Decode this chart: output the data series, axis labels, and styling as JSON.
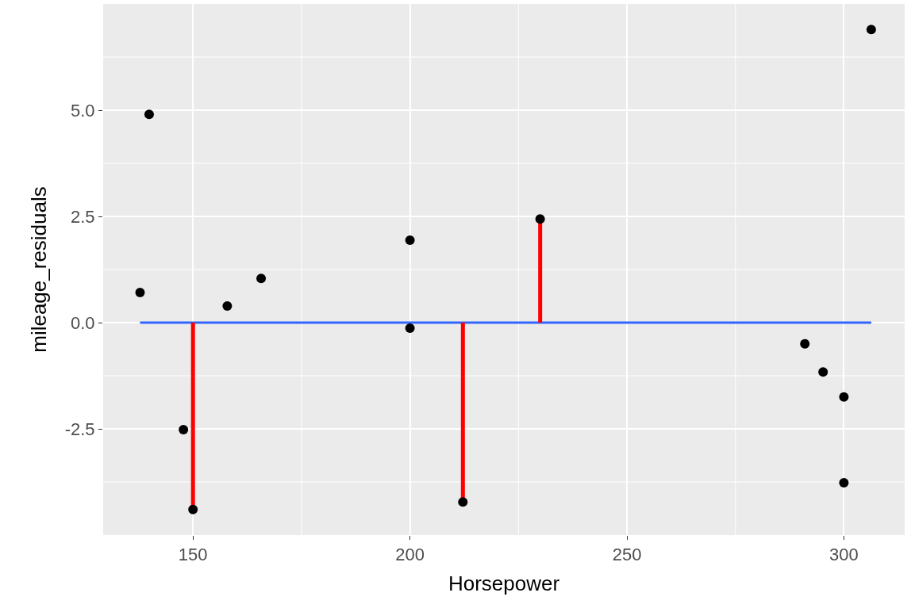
{
  "chart_data": {
    "type": "scatter",
    "xlabel": "Horsepower",
    "ylabel": "mileage_residuals",
    "xlim": [
      129.3,
      314
    ],
    "ylim": [
      -5.0,
      7.5
    ],
    "xticks": [
      150,
      200,
      250,
      300
    ],
    "yticks": [
      {
        "value": -2.5,
        "label": "-2.5"
      },
      {
        "value": 0,
        "label": "0.0"
      },
      {
        "value": 2.5,
        "label": "2.5"
      },
      {
        "value": 5,
        "label": "5.0"
      }
    ],
    "grid": true,
    "series": [
      {
        "type": "line",
        "marker": "none",
        "color": "#3366ff",
        "x": [
          137.8,
          306.3
        ],
        "values": [
          0,
          0
        ]
      },
      {
        "type": "line",
        "marker": "none",
        "color": "#ff0000",
        "x": [
          150,
          150
        ],
        "values": [
          0,
          -4.4
        ]
      },
      {
        "type": "line",
        "marker": "none",
        "color": "#ff0000",
        "x": [
          212.2,
          212.2
        ],
        "values": [
          0,
          -4.22
        ]
      },
      {
        "type": "line",
        "marker": "none",
        "color": "#ff0000",
        "x": [
          230,
          230
        ],
        "values": [
          0,
          2.44
        ]
      },
      {
        "marker": "circle",
        "color": "#000000",
        "x": [
          137.8,
          139.9,
          147.8,
          150,
          157.9,
          165.7,
          200,
          200,
          212.2,
          230,
          291,
          295.2,
          300,
          300,
          306.3
        ],
        "values": [
          0.71,
          4.9,
          -2.52,
          -4.4,
          0.39,
          1.04,
          1.94,
          -0.13,
          -4.22,
          2.44,
          -0.5,
          -1.16,
          -1.75,
          -3.77,
          6.9
        ]
      }
    ]
  }
}
